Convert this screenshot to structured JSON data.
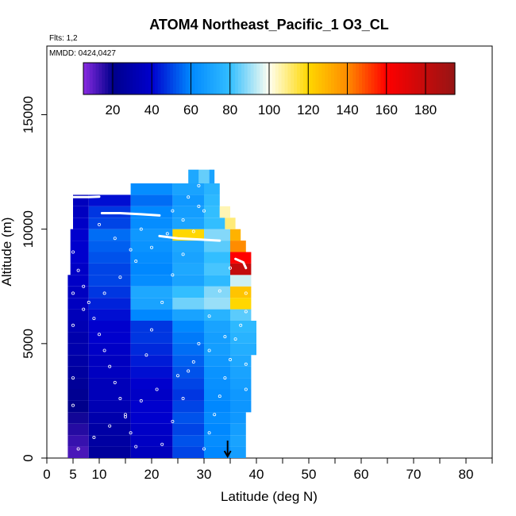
{
  "chart_data": {
    "type": "heatmap",
    "title": "ATOM4 Northeast_Pacific_1 O3_CL",
    "flights_label": "Flts: 1,2",
    "mmdd_label": "MMDD: 0424,0427",
    "xlabel": "Latitude (deg N)",
    "ylabel": "Altitude (m)",
    "xlim": [
      0,
      85
    ],
    "ylim": [
      0,
      18000
    ],
    "x_ticks": [
      0,
      5,
      10,
      20,
      30,
      40,
      50,
      60,
      70,
      80
    ],
    "y_ticks": [
      0,
      5000,
      10000,
      15000
    ],
    "colorbar": {
      "range": [
        5,
        195
      ],
      "ticks": [
        20,
        40,
        60,
        80,
        100,
        120,
        140,
        160,
        180
      ]
    },
    "colors": {
      "background": "#ffffff",
      "flight_track": "#ffffff",
      "arrow": "#000000"
    },
    "arrow_marker": {
      "lat": 34.5,
      "alt": 0
    },
    "layers": [
      {
        "alt": [
          0,
          500
        ],
        "cells": [
          [
            4,
            8,
            12
          ],
          [
            8,
            16,
            25
          ],
          [
            16,
            24,
            35
          ],
          [
            24,
            30,
            50
          ],
          [
            30,
            35,
            60
          ],
          [
            35,
            38,
            68
          ]
        ]
      },
      {
        "alt": [
          500,
          1000
        ],
        "cells": [
          [
            4,
            8,
            14
          ],
          [
            8,
            16,
            27
          ],
          [
            16,
            24,
            37
          ],
          [
            24,
            30,
            52
          ],
          [
            30,
            35,
            62
          ],
          [
            35,
            38,
            70
          ]
        ]
      },
      {
        "alt": [
          1000,
          1500
        ],
        "cells": [
          [
            4,
            8,
            16
          ],
          [
            8,
            16,
            28
          ],
          [
            16,
            24,
            38
          ],
          [
            24,
            30,
            50
          ],
          [
            30,
            35,
            60
          ],
          [
            35,
            38,
            68
          ]
        ]
      },
      {
        "alt": [
          1500,
          2000
        ],
        "cells": [
          [
            4,
            8,
            18
          ],
          [
            8,
            16,
            30
          ],
          [
            16,
            24,
            40
          ],
          [
            24,
            30,
            52
          ],
          [
            30,
            35,
            62
          ],
          [
            35,
            38,
            66
          ]
        ]
      },
      {
        "alt": [
          2000,
          2500
        ],
        "cells": [
          [
            4,
            8,
            20
          ],
          [
            8,
            16,
            32
          ],
          [
            16,
            24,
            40
          ],
          [
            24,
            30,
            50
          ],
          [
            30,
            35,
            60
          ],
          [
            35,
            39,
            65
          ]
        ]
      },
      {
        "alt": [
          2500,
          3000
        ],
        "cells": [
          [
            4,
            8,
            22
          ],
          [
            8,
            16,
            34
          ],
          [
            16,
            24,
            38
          ],
          [
            24,
            30,
            48
          ],
          [
            30,
            35,
            62
          ],
          [
            35,
            39,
            66
          ]
        ]
      },
      {
        "alt": [
          3000,
          3500
        ],
        "cells": [
          [
            4,
            8,
            24
          ],
          [
            8,
            16,
            34
          ],
          [
            16,
            24,
            40
          ],
          [
            24,
            30,
            50
          ],
          [
            30,
            35,
            63
          ],
          [
            35,
            39,
            68
          ]
        ]
      },
      {
        "alt": [
          3500,
          4000
        ],
        "cells": [
          [
            4,
            8,
            26
          ],
          [
            8,
            16,
            36
          ],
          [
            16,
            24,
            42
          ],
          [
            24,
            30,
            52
          ],
          [
            30,
            35,
            64
          ],
          [
            35,
            39,
            70
          ]
        ]
      },
      {
        "alt": [
          4000,
          4500
        ],
        "cells": [
          [
            4,
            8,
            28
          ],
          [
            8,
            16,
            36
          ],
          [
            16,
            24,
            44
          ],
          [
            24,
            30,
            54
          ],
          [
            30,
            35,
            66
          ],
          [
            35,
            39,
            72
          ]
        ]
      },
      {
        "alt": [
          4500,
          5000
        ],
        "cells": [
          [
            4,
            8,
            30
          ],
          [
            8,
            16,
            38
          ],
          [
            16,
            24,
            46
          ],
          [
            24,
            30,
            56
          ],
          [
            30,
            35,
            68
          ],
          [
            35,
            40,
            74
          ]
        ]
      },
      {
        "alt": [
          5000,
          5500
        ],
        "cells": [
          [
            4,
            8,
            30
          ],
          [
            8,
            16,
            40
          ],
          [
            16,
            24,
            48
          ],
          [
            24,
            30,
            58
          ],
          [
            30,
            35,
            68
          ],
          [
            35,
            40,
            76
          ]
        ]
      },
      {
        "alt": [
          5500,
          6000
        ],
        "cells": [
          [
            4,
            8,
            32
          ],
          [
            8,
            16,
            40
          ],
          [
            16,
            24,
            48
          ],
          [
            24,
            30,
            60
          ],
          [
            30,
            35,
            70
          ],
          [
            35,
            40,
            78
          ]
        ]
      },
      {
        "alt": [
          6000,
          6500
        ],
        "cells": [
          [
            4,
            8,
            34
          ],
          [
            8,
            16,
            42
          ],
          [
            16,
            24,
            60
          ],
          [
            24,
            30,
            70
          ],
          [
            30,
            35,
            76
          ],
          [
            35,
            39,
            84
          ]
        ]
      },
      {
        "alt": [
          6500,
          7000
        ],
        "cells": [
          [
            4,
            8,
            36
          ],
          [
            8,
            16,
            45
          ],
          [
            16,
            24,
            70
          ],
          [
            24,
            30,
            86
          ],
          [
            30,
            35,
            90
          ],
          [
            35,
            39,
            120
          ]
        ]
      },
      {
        "alt": [
          7000,
          7500
        ],
        "cells": [
          [
            4,
            8,
            36
          ],
          [
            8,
            16,
            48
          ],
          [
            16,
            24,
            72
          ],
          [
            24,
            30,
            80
          ],
          [
            30,
            35,
            88
          ],
          [
            35,
            39,
            125
          ]
        ]
      },
      {
        "alt": [
          7500,
          8000
        ],
        "cells": [
          [
            4,
            8,
            38
          ],
          [
            8,
            16,
            50
          ],
          [
            16,
            24,
            62
          ],
          [
            24,
            30,
            70
          ],
          [
            30,
            35,
            78
          ],
          [
            35,
            39,
            95
          ]
        ]
      },
      {
        "alt": [
          8000,
          8500
        ],
        "cells": [
          [
            4.5,
            8,
            38
          ],
          [
            8,
            16,
            50
          ],
          [
            16,
            24,
            60
          ],
          [
            24,
            30,
            72
          ],
          [
            30,
            35,
            82
          ],
          [
            35,
            39,
            180
          ]
        ]
      },
      {
        "alt": [
          8500,
          9000
        ],
        "cells": [
          [
            4.5,
            8,
            40
          ],
          [
            8,
            16,
            52
          ],
          [
            16,
            24,
            62
          ],
          [
            24,
            30,
            70
          ],
          [
            30,
            35,
            80
          ],
          [
            35,
            39,
            160
          ]
        ]
      },
      {
        "alt": [
          9000,
          9500
        ],
        "cells": [
          [
            4.5,
            8,
            40
          ],
          [
            8,
            16,
            54
          ],
          [
            16,
            24,
            64
          ],
          [
            24,
            30,
            72
          ],
          [
            30,
            35,
            84
          ],
          [
            35,
            38,
            140
          ]
        ]
      },
      {
        "alt": [
          9500,
          10000
        ],
        "cells": [
          [
            4.5,
            8,
            40
          ],
          [
            8,
            16,
            56
          ],
          [
            16,
            24,
            66
          ],
          [
            24,
            30,
            120
          ],
          [
            30,
            35,
            88
          ],
          [
            35,
            37,
            130
          ]
        ]
      },
      {
        "alt": [
          10000,
          10500
        ],
        "cells": [
          [
            5,
            8,
            38
          ],
          [
            8,
            16,
            50
          ],
          [
            16,
            24,
            62
          ],
          [
            24,
            30,
            70
          ],
          [
            30,
            34,
            80
          ],
          [
            34,
            36,
            110
          ]
        ]
      },
      {
        "alt": [
          10500,
          11000
        ],
        "cells": [
          [
            5,
            8,
            36
          ],
          [
            8,
            16,
            48
          ],
          [
            16,
            24,
            60
          ],
          [
            24,
            30,
            68
          ],
          [
            30,
            33,
            80
          ],
          [
            33,
            35,
            105
          ]
        ]
      },
      {
        "alt": [
          11000,
          11500
        ],
        "cells": [
          [
            5,
            8,
            35
          ],
          [
            8,
            16,
            42
          ],
          [
            16,
            24,
            56
          ],
          [
            24,
            30,
            66
          ],
          [
            30,
            33,
            78
          ]
        ]
      },
      {
        "alt": [
          11500,
          12000
        ],
        "cells": [
          [
            16,
            24,
            62
          ],
          [
            24,
            30,
            70
          ],
          [
            30,
            33,
            76
          ]
        ]
      },
      {
        "alt": [
          12000,
          12600
        ],
        "cells": [
          [
            27,
            29,
            72
          ],
          [
            29,
            31,
            85
          ],
          [
            31,
            32,
            70
          ]
        ]
      }
    ],
    "flight_tracks": [
      {
        "points": [
          [
            5,
            11400
          ],
          [
            8,
            11400
          ],
          [
            10,
            11420
          ]
        ]
      },
      {
        "points": [
          [
            10.5,
            10700
          ],
          [
            14,
            10700
          ],
          [
            18,
            10650
          ],
          [
            21.5,
            10600
          ]
        ]
      },
      {
        "points": [
          [
            21.5,
            9700
          ],
          [
            25,
            9600
          ],
          [
            29,
            9550
          ],
          [
            33,
            9500
          ]
        ]
      },
      {
        "points": [
          [
            36,
            8700
          ],
          [
            37.5,
            8550
          ],
          [
            38,
            8300
          ]
        ]
      }
    ],
    "sample_points": [
      [
        6,
        400
      ],
      [
        9,
        900
      ],
      [
        12,
        1400
      ],
      [
        15,
        1900
      ],
      [
        18,
        2500
      ],
      [
        21,
        3000
      ],
      [
        25,
        3600
      ],
      [
        28,
        4200
      ],
      [
        31,
        4700
      ],
      [
        34,
        5300
      ],
      [
        37,
        5800
      ],
      [
        7,
        6500
      ],
      [
        11,
        7200
      ],
      [
        14,
        7900
      ],
      [
        17,
        8600
      ],
      [
        20,
        9200
      ],
      [
        23,
        9800
      ],
      [
        26,
        10400
      ],
      [
        29,
        11000
      ],
      [
        36,
        5200
      ],
      [
        35,
        4300
      ],
      [
        34,
        3500
      ],
      [
        33,
        2700
      ],
      [
        32,
        1900
      ],
      [
        31,
        1100
      ],
      [
        30,
        400
      ],
      [
        5,
        9000
      ],
      [
        6,
        8200
      ],
      [
        7,
        7500
      ],
      [
        8,
        6800
      ],
      [
        9,
        6100
      ],
      [
        10,
        5400
      ],
      [
        11,
        4700
      ],
      [
        12,
        4000
      ],
      [
        13,
        3300
      ],
      [
        14,
        2600
      ],
      [
        15,
        1800
      ],
      [
        16,
        1100
      ],
      [
        17,
        500
      ],
      [
        22,
        600
      ],
      [
        24,
        1600
      ],
      [
        26,
        2600
      ],
      [
        27,
        3800
      ],
      [
        29,
        5000
      ],
      [
        31,
        6200
      ],
      [
        33,
        7300
      ],
      [
        35,
        8300
      ],
      [
        19,
        4500
      ],
      [
        20,
        5600
      ],
      [
        22,
        6800
      ],
      [
        24,
        8000
      ],
      [
        26,
        8900
      ],
      [
        28,
        9900
      ],
      [
        30,
        10800
      ],
      [
        10,
        10200
      ],
      [
        13,
        9600
      ],
      [
        16,
        9100
      ],
      [
        18,
        10000
      ],
      [
        24,
        10800
      ],
      [
        27,
        11400
      ],
      [
        29,
        11900
      ],
      [
        5,
        2300
      ],
      [
        5,
        3500
      ],
      [
        5,
        5800
      ],
      [
        5,
        7200
      ],
      [
        38,
        3000
      ],
      [
        38,
        4100
      ],
      [
        38,
        6400
      ],
      [
        38,
        7200
      ]
    ]
  }
}
